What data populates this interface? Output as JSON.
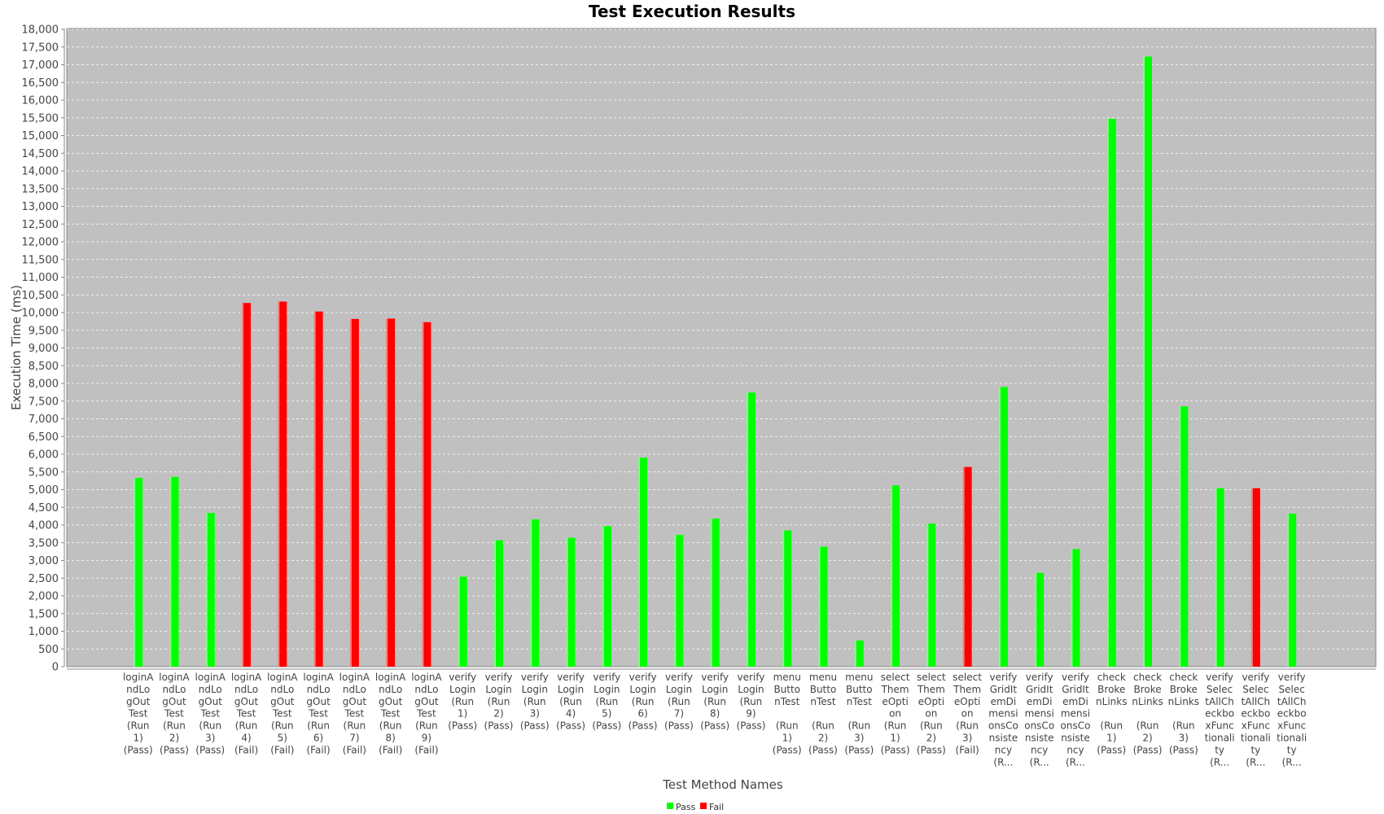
{
  "chart_data": {
    "type": "bar",
    "title": "Test Execution Results",
    "xlabel": "Test Method Names",
    "ylabel": "Execution Time (ms)",
    "ylim": [
      0,
      18000
    ],
    "ytick_step": 500,
    "grid": true,
    "legend_position": "bottom-center",
    "colors": {
      "pass": "#00ff00",
      "fail": "#ff0000",
      "plot_background": "#c0c0c0",
      "gridline": "#ffffff"
    },
    "series": [
      {
        "name": "Pass",
        "color": "#00ff00"
      },
      {
        "name": "Fail",
        "color": "#ff0000"
      }
    ],
    "bars": [
      {
        "label_lines": [
          "loginA",
          "ndLo",
          "gOut",
          "Test",
          "(Run",
          "1)",
          "(Pass)"
        ],
        "status": "Pass",
        "value": 5330
      },
      {
        "label_lines": [
          "loginA",
          "ndLo",
          "gOut",
          "Test",
          "(Run",
          "2)",
          "(Pass)"
        ],
        "status": "Pass",
        "value": 5360
      },
      {
        "label_lines": [
          "loginA",
          "ndLo",
          "gOut",
          "Test",
          "(Run",
          "3)",
          "(Pass)"
        ],
        "status": "Pass",
        "value": 4340
      },
      {
        "label_lines": [
          "loginA",
          "ndLo",
          "gOut",
          "Test",
          "(Run",
          "4)",
          "(Fail)"
        ],
        "status": "Fail",
        "value": 10270
      },
      {
        "label_lines": [
          "loginA",
          "ndLo",
          "gOut",
          "Test",
          "(Run",
          "5)",
          "(Fail)"
        ],
        "status": "Fail",
        "value": 10310
      },
      {
        "label_lines": [
          "loginA",
          "ndLo",
          "gOut",
          "Test",
          "(Run",
          "6)",
          "(Fail)"
        ],
        "status": "Fail",
        "value": 10030
      },
      {
        "label_lines": [
          "loginA",
          "ndLo",
          "gOut",
          "Test",
          "(Run",
          "7)",
          "(Fail)"
        ],
        "status": "Fail",
        "value": 9820
      },
      {
        "label_lines": [
          "loginA",
          "ndLo",
          "gOut",
          "Test",
          "(Run",
          "8)",
          "(Fail)"
        ],
        "status": "Fail",
        "value": 9830
      },
      {
        "label_lines": [
          "loginA",
          "ndLo",
          "gOut",
          "Test",
          "(Run",
          "9)",
          "(Fail)"
        ],
        "status": "Fail",
        "value": 9730
      },
      {
        "label_lines": [
          "verify",
          "Login",
          "(Run",
          "1)",
          "(Pass)"
        ],
        "status": "Pass",
        "value": 2540
      },
      {
        "label_lines": [
          "verify",
          "Login",
          "(Run",
          "2)",
          "(Pass)"
        ],
        "status": "Pass",
        "value": 3570
      },
      {
        "label_lines": [
          "verify",
          "Login",
          "(Run",
          "3)",
          "(Pass)"
        ],
        "status": "Pass",
        "value": 4160
      },
      {
        "label_lines": [
          "verify",
          "Login",
          "(Run",
          "4)",
          "(Pass)"
        ],
        "status": "Pass",
        "value": 3640
      },
      {
        "label_lines": [
          "verify",
          "Login",
          "(Run",
          "5)",
          "(Pass)"
        ],
        "status": "Pass",
        "value": 3970
      },
      {
        "label_lines": [
          "verify",
          "Login",
          "(Run",
          "6)",
          "(Pass)"
        ],
        "status": "Pass",
        "value": 5900
      },
      {
        "label_lines": [
          "verify",
          "Login",
          "(Run",
          "7)",
          "(Pass)"
        ],
        "status": "Pass",
        "value": 3720
      },
      {
        "label_lines": [
          "verify",
          "Login",
          "(Run",
          "8)",
          "(Pass)"
        ],
        "status": "Pass",
        "value": 4180
      },
      {
        "label_lines": [
          "verify",
          "Login",
          "(Run",
          "9)",
          "(Pass)"
        ],
        "status": "Pass",
        "value": 7740
      },
      {
        "label_lines": [
          "menu",
          "Butto",
          "nTest",
          "",
          "(Run",
          "1)",
          "(Pass)"
        ],
        "status": "Pass",
        "value": 3850
      },
      {
        "label_lines": [
          "menu",
          "Butto",
          "nTest",
          "",
          "(Run",
          "2)",
          "(Pass)"
        ],
        "status": "Pass",
        "value": 3390
      },
      {
        "label_lines": [
          "menu",
          "Butto",
          "nTest",
          "",
          "(Run",
          "3)",
          "(Pass)"
        ],
        "status": "Pass",
        "value": 740
      },
      {
        "label_lines": [
          "select",
          "Them",
          "eOpti",
          "on",
          "(Run",
          "1)",
          "(Pass)"
        ],
        "status": "Pass",
        "value": 5120
      },
      {
        "label_lines": [
          "select",
          "Them",
          "eOpti",
          "on",
          "(Run",
          "2)",
          "(Pass)"
        ],
        "status": "Pass",
        "value": 4040
      },
      {
        "label_lines": [
          "select",
          "Them",
          "eOpti",
          "on",
          "(Run",
          "3)",
          "(Fail)"
        ],
        "status": "Fail",
        "value": 5640
      },
      {
        "label_lines": [
          "verify",
          "GridIt",
          "emDi",
          "mensi",
          "onsCo",
          "nsiste",
          "ncy",
          "(R..."
        ],
        "status": "Pass",
        "value": 7900
      },
      {
        "label_lines": [
          "verify",
          "GridIt",
          "emDi",
          "mensi",
          "onsCo",
          "nsiste",
          "ncy",
          "(R..."
        ],
        "status": "Pass",
        "value": 2650
      },
      {
        "label_lines": [
          "verify",
          "GridIt",
          "emDi",
          "mensi",
          "onsCo",
          "nsiste",
          "ncy",
          "(R..."
        ],
        "status": "Pass",
        "value": 3320
      },
      {
        "label_lines": [
          "check",
          "Broke",
          "nLinks",
          "",
          "(Run",
          "1)",
          "(Pass)"
        ],
        "status": "Pass",
        "value": 15470
      },
      {
        "label_lines": [
          "check",
          "Broke",
          "nLinks",
          "",
          "(Run",
          "2)",
          "(Pass)"
        ],
        "status": "Pass",
        "value": 17230
      },
      {
        "label_lines": [
          "check",
          "Broke",
          "nLinks",
          "",
          "(Run",
          "3)",
          "(Pass)"
        ],
        "status": "Pass",
        "value": 7350
      },
      {
        "label_lines": [
          "verify",
          "Selec",
          "tAllCh",
          "eckbo",
          "xFunc",
          "tionali",
          "ty",
          "(R..."
        ],
        "status": "Pass",
        "value": 5040
      },
      {
        "label_lines": [
          "verify",
          "Selec",
          "tAllCh",
          "eckbo",
          "xFunc",
          "tionali",
          "ty",
          "(R..."
        ],
        "status": "Fail",
        "value": 5040
      },
      {
        "label_lines": [
          "verify",
          "Selec",
          "tAllCh",
          "eckbo",
          "xFunc",
          "tionali",
          "ty",
          "(R..."
        ],
        "status": "Pass",
        "value": 4320
      }
    ]
  }
}
